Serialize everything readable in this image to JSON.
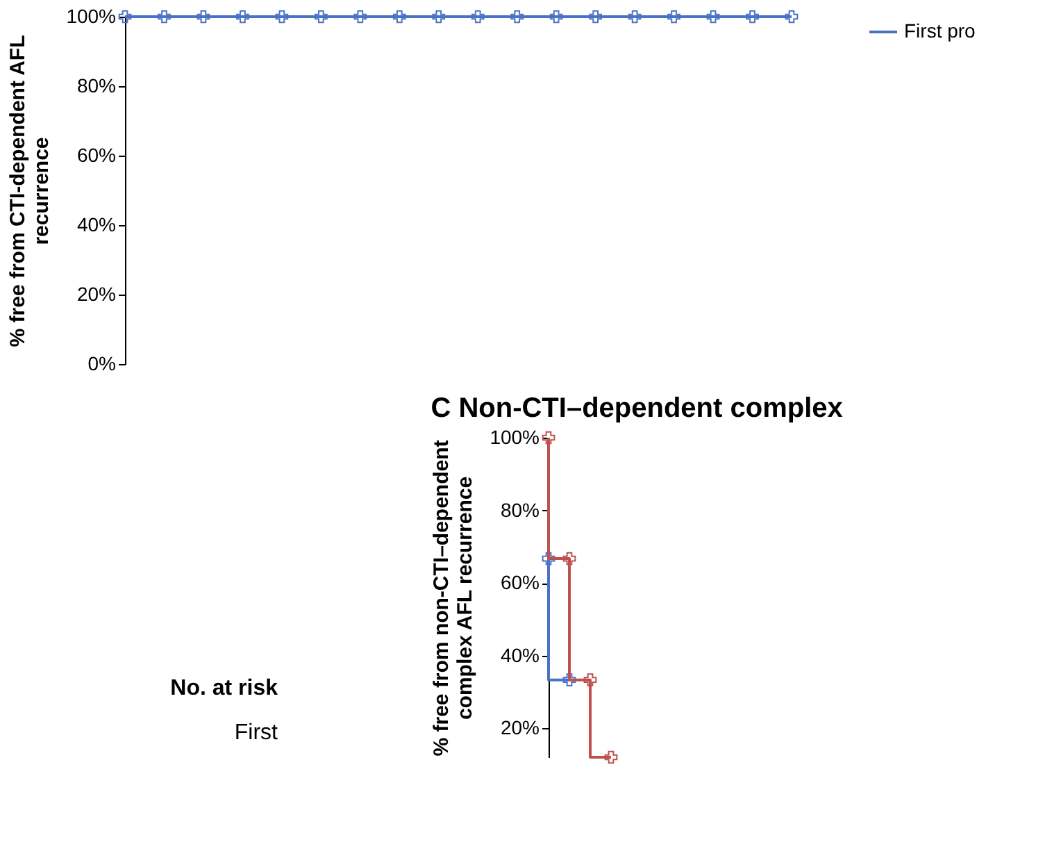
{
  "chart_data": [
    {
      "type": "line",
      "ylabel": "% free from CTI-dependent AFL\nrecurrence",
      "categories": [
        null,
        null,
        null,
        null,
        null,
        null,
        null,
        null,
        null,
        null,
        null,
        null,
        null,
        null,
        null,
        null,
        null,
        null
      ],
      "ylim": [
        0,
        100
      ],
      "yticks": [
        {
          "value": 0,
          "label": "0%"
        },
        {
          "value": 20,
          "label": "20%"
        },
        {
          "value": 40,
          "label": "40%"
        },
        {
          "value": 60,
          "label": "60%"
        },
        {
          "value": 80,
          "label": "80%"
        },
        {
          "value": 100,
          "label": "100%"
        }
      ],
      "tick_labels": "y",
      "grid": false,
      "legend": false,
      "marker": "cross",
      "series": [
        {
          "color": "#4a72c4",
          "values": [
            100,
            100,
            100,
            100,
            100,
            100,
            100,
            100,
            100,
            100,
            100,
            100,
            100,
            100,
            100,
            100,
            100,
            100
          ]
        }
      ],
      "annotations": [
        "No. at risk",
        "First"
      ]
    },
    {
      "type": "step",
      "title": "C Non-CTI–dependent complex",
      "ylabel": "% free from non-CTI–dependent\ncomplex AFL recurrence",
      "categories": [
        null,
        null,
        null,
        null
      ],
      "ylim": [
        12,
        100
      ],
      "yticks": [
        {
          "value": 20,
          "label": "20%"
        },
        {
          "value": 40,
          "label": "40%"
        },
        {
          "value": 60,
          "label": "60%"
        },
        {
          "value": 80,
          "label": "80%"
        },
        {
          "value": 100,
          "label": "100%"
        }
      ],
      "tick_labels": "y",
      "grid": false,
      "legend": "right",
      "marker": "cross",
      "series": [
        {
          "name": "First pro",
          "color": "#4a72c4",
          "values": [
            66.7,
            33.3,
            null,
            null
          ]
        },
        {
          "color": "#c0504d",
          "values": [
            100,
            66.7,
            33.3,
            12
          ]
        }
      ]
    }
  ]
}
